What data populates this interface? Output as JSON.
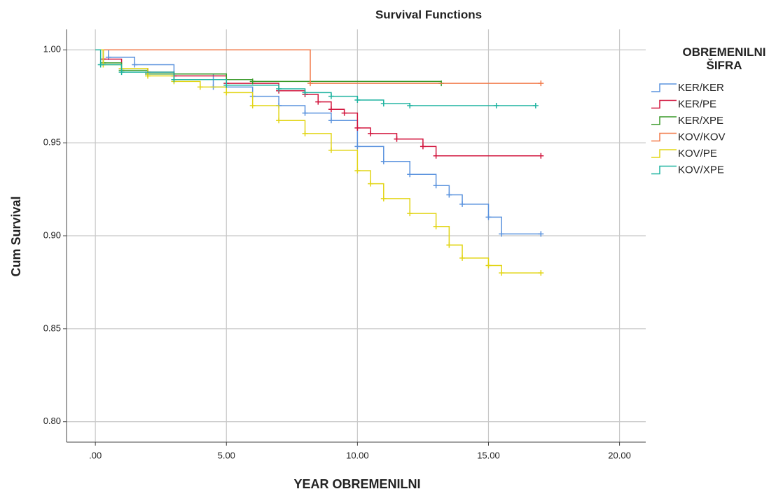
{
  "chart_data": {
    "type": "survival",
    "title": "Survival Functions",
    "x_label": "YEAR OBREMENILNI",
    "y_label": "Cum Survival",
    "legend_title": "OBREMENILNI ŠIFRA",
    "legend_position": "right",
    "grid": true,
    "xlim": [
      -1.1,
      21.0
    ],
    "ylim": [
      0.789,
      1.011
    ],
    "xticks": [
      {
        "value": 0,
        "label": ".00"
      },
      {
        "value": 5,
        "label": "5.00"
      },
      {
        "value": 10,
        "label": "10.00"
      },
      {
        "value": 15,
        "label": "15.00"
      },
      {
        "value": 20,
        "label": "20.00"
      }
    ],
    "yticks": [
      {
        "value": 1,
        "label": "1.00"
      },
      0.95,
      {
        "value": 0.9,
        "label": "0.90"
      },
      0.85,
      {
        "value": 0.8,
        "label": "0.80"
      }
    ],
    "series": [
      {
        "name": "KER/KER",
        "color": "#5b93de",
        "x": [
          0,
          0.5,
          1.5,
          3,
          4.5,
          6,
          7,
          8,
          9,
          10,
          11,
          12,
          13,
          13.5,
          14,
          15,
          15.5,
          17
        ],
        "values": [
          1,
          0.996,
          0.992,
          0.987,
          0.98,
          0.975,
          0.97,
          0.966,
          0.962,
          0.948,
          0.94,
          0.933,
          0.927,
          0.922,
          0.917,
          0.91,
          0.901,
          0.901
        ]
      },
      {
        "name": "KER/PE",
        "color": "#d2173f",
        "x": [
          0,
          0.3,
          1,
          2,
          3,
          5,
          7,
          8,
          8.5,
          9,
          9.5,
          10,
          10.5,
          11.5,
          12.5,
          13,
          17
        ],
        "values": [
          1,
          0.995,
          0.99,
          0.988,
          0.986,
          0.982,
          0.978,
          0.976,
          0.972,
          0.968,
          0.966,
          0.958,
          0.955,
          0.952,
          0.948,
          0.943,
          0.943
        ]
      },
      {
        "name": "KER/XPE",
        "color": "#3a9a2a",
        "x": [
          0,
          0.3,
          1,
          2,
          5,
          6,
          13.2
        ],
        "values": [
          1,
          0.993,
          0.989,
          0.987,
          0.984,
          0.983,
          0.982
        ]
      },
      {
        "name": "KOV/KOV",
        "color": "#f27b4b",
        "x": [
          0,
          8.2,
          17
        ],
        "values": [
          1,
          0.982,
          0.982
        ]
      },
      {
        "name": "KOV/PE",
        "color": "#e2d516",
        "x": [
          0,
          0.3,
          1,
          2,
          3,
          4,
          5,
          6,
          7,
          8,
          9,
          10,
          10.5,
          11,
          12,
          13,
          13.5,
          14,
          15,
          15.5,
          17
        ],
        "values": [
          1,
          0.992,
          0.99,
          0.986,
          0.983,
          0.98,
          0.977,
          0.97,
          0.962,
          0.955,
          0.946,
          0.935,
          0.928,
          0.92,
          0.912,
          0.905,
          0.895,
          0.888,
          0.884,
          0.88,
          0.88
        ]
      },
      {
        "name": "KOV/XPE",
        "color": "#1fb3a0",
        "x": [
          0,
          0.2,
          1,
          3,
          5,
          7,
          8,
          9,
          10,
          11,
          12,
          15.3,
          16.8
        ],
        "values": [
          1,
          0.992,
          0.988,
          0.984,
          0.981,
          0.979,
          0.977,
          0.975,
          0.973,
          0.971,
          0.97,
          0.97,
          0.97
        ]
      }
    ]
  }
}
